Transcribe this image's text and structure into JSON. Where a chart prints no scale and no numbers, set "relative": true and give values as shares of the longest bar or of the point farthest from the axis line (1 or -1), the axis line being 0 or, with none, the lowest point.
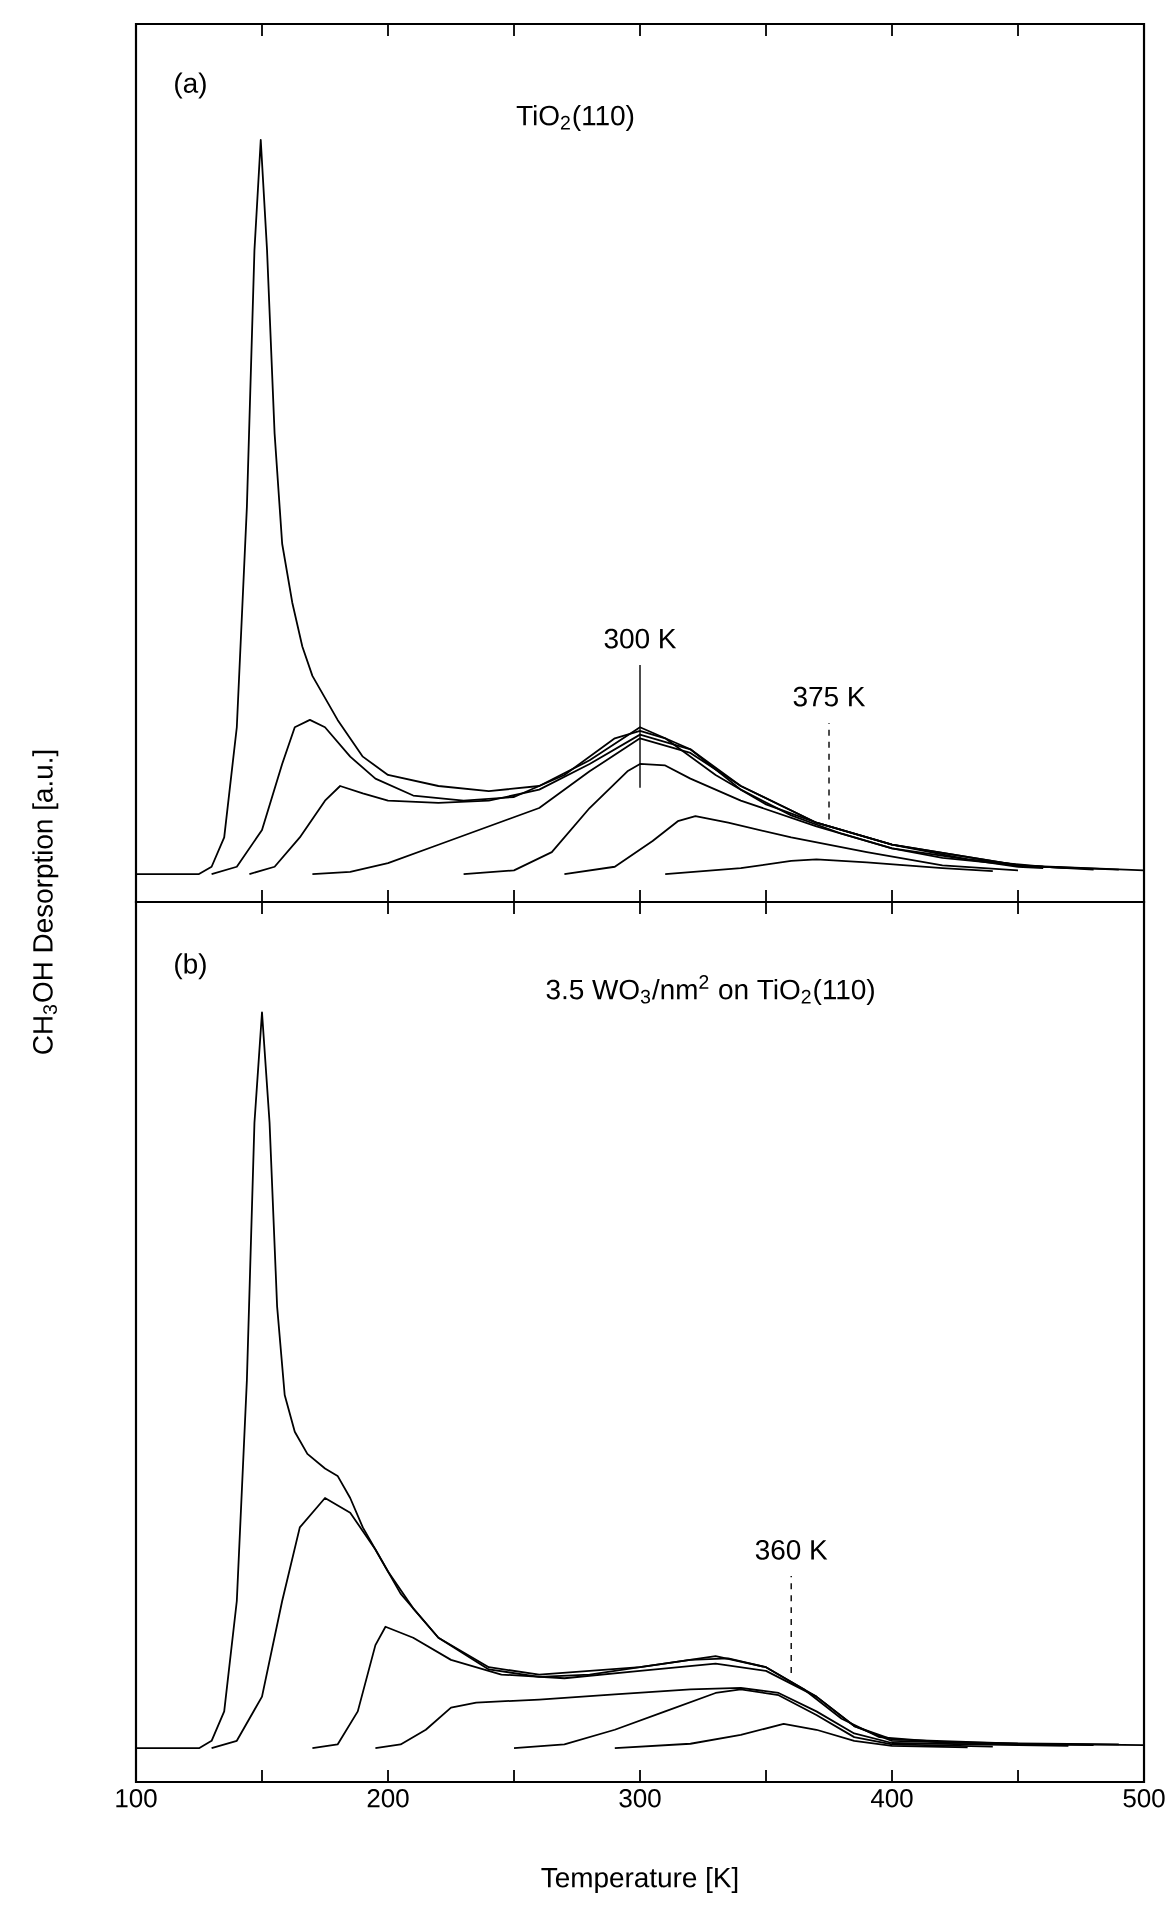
{
  "chart_data": [
    {
      "type": "line",
      "relative": true,
      "ylabel": "CH$_{3}$OH Desorption [a.u.]",
      "tick_labels": false,
      "xlim": [
        100,
        500
      ],
      "xticks": [
        100,
        {
          "value": 150,
          "label": null
        },
        200,
        {
          "value": 250,
          "label": null
        },
        300,
        {
          "value": 350,
          "label": null
        },
        400,
        {
          "value": 450,
          "label": null
        },
        500
      ],
      "annotations": [
        "(a)",
        "TiO$_{2}$(110)",
        "300 K",
        "375 K"
      ],
      "series": [
        {
          "color": "#000000",
          "x": [
            100,
            125,
            130,
            135,
            140,
            144,
            147,
            149.5,
            152,
            155,
            158,
            162,
            166,
            170,
            180,
            190,
            200,
            220,
            240,
            260,
            280,
            300,
            320,
            340,
            360,
            380,
            400,
            420,
            450,
            500
          ],
          "values": [
            0,
            0,
            0.01,
            0.05,
            0.2,
            0.5,
            0.85,
            1.0,
            0.85,
            0.6,
            0.45,
            0.37,
            0.31,
            0.27,
            0.21,
            0.16,
            0.135,
            0.12,
            0.113,
            0.12,
            0.155,
            0.2,
            0.17,
            0.115,
            0.08,
            0.055,
            0.035,
            0.022,
            0.012,
            0.005
          ]
        },
        {
          "color": "#000000",
          "x": [
            130,
            140,
            150,
            158,
            163,
            169,
            175,
            185,
            195,
            210,
            230,
            250,
            270,
            290,
            300,
            310,
            330,
            350,
            370,
            400,
            430,
            460,
            490
          ],
          "values": [
            0,
            0.01,
            0.06,
            0.15,
            0.2,
            0.21,
            0.2,
            0.16,
            0.13,
            0.107,
            0.1,
            0.105,
            0.135,
            0.185,
            0.195,
            0.185,
            0.135,
            0.095,
            0.07,
            0.04,
            0.02,
            0.01,
            0.006
          ]
        },
        {
          "color": "#000000",
          "x": [
            145,
            155,
            165,
            175,
            181,
            190,
            200,
            220,
            240,
            260,
            280,
            300,
            320,
            340,
            370,
            400,
            450,
            480
          ],
          "values": [
            0,
            0.01,
            0.05,
            0.1,
            0.12,
            0.11,
            0.1,
            0.097,
            0.1,
            0.115,
            0.15,
            0.19,
            0.17,
            0.12,
            0.07,
            0.04,
            0.012,
            0.006
          ]
        },
        {
          "color": "#000000",
          "x": [
            170,
            185,
            200,
            220,
            240,
            260,
            280,
            300,
            320,
            340,
            370,
            400,
            450,
            470
          ],
          "values": [
            0,
            0.003,
            0.015,
            0.04,
            0.065,
            0.09,
            0.14,
            0.185,
            0.165,
            0.12,
            0.07,
            0.04,
            0.012,
            0.008
          ]
        },
        {
          "color": "#000000",
          "x": [
            230,
            250,
            265,
            280,
            295,
            300,
            310,
            320,
            340,
            370,
            400,
            450,
            460
          ],
          "values": [
            0,
            0.005,
            0.03,
            0.09,
            0.14,
            0.15,
            0.148,
            0.13,
            0.1,
            0.065,
            0.035,
            0.01,
            0.008
          ]
        },
        {
          "color": "#000000",
          "x": [
            270,
            290,
            305,
            315,
            322,
            335,
            360,
            390,
            420,
            450
          ],
          "values": [
            0,
            0.01,
            0.045,
            0.072,
            0.079,
            0.07,
            0.05,
            0.03,
            0.012,
            0.005
          ]
        },
        {
          "color": "#000000",
          "x": [
            310,
            340,
            360,
            370,
            390,
            420,
            440
          ],
          "values": [
            0,
            0.008,
            0.018,
            0.02,
            0.016,
            0.008,
            0.004
          ]
        }
      ]
    },
    {
      "type": "line",
      "relative": true,
      "xlabel": "Temperature [K]",
      "tick_labels": "x",
      "xlim": [
        100,
        500
      ],
      "xticks": [
        100,
        {
          "value": 150,
          "label": null
        },
        200,
        {
          "value": 250,
          "label": null
        },
        300,
        {
          "value": 350,
          "label": null
        },
        400,
        {
          "value": 450,
          "label": null
        },
        500
      ],
      "annotations": [
        "(b)",
        "3.5 WO$_{3}$/nm$^{2}$ on TiO$_{2}$(110)",
        "360 K"
      ],
      "series": [
        {
          "color": "#000000",
          "x": [
            100,
            125,
            130,
            135,
            140,
            144,
            147,
            150,
            153,
            156,
            159,
            163,
            168,
            175,
            180,
            185,
            190,
            200,
            210,
            220,
            240,
            260,
            300,
            330,
            350,
            370,
            385,
            400,
            450,
            500
          ],
          "values": [
            0,
            0,
            0.01,
            0.05,
            0.2,
            0.5,
            0.85,
            1.0,
            0.85,
            0.6,
            0.48,
            0.43,
            0.4,
            0.38,
            0.37,
            0.34,
            0.3,
            0.24,
            0.19,
            0.15,
            0.11,
            0.1,
            0.11,
            0.125,
            0.11,
            0.07,
            0.03,
            0.012,
            0.006,
            0.004
          ]
        },
        {
          "color": "#000000",
          "x": [
            130,
            140,
            150,
            158,
            165,
            175,
            185,
            195,
            205,
            220,
            240,
            260,
            280,
            300,
            320,
            335,
            350,
            365,
            380,
            395,
            420,
            460,
            490
          ],
          "values": [
            0,
            0.01,
            0.07,
            0.2,
            0.3,
            0.34,
            0.32,
            0.27,
            0.21,
            0.15,
            0.107,
            0.097,
            0.1,
            0.11,
            0.12,
            0.122,
            0.11,
            0.08,
            0.04,
            0.015,
            0.008,
            0.006,
            0.005
          ]
        },
        {
          "color": "#000000",
          "x": [
            170,
            180,
            188,
            195,
            199,
            210,
            225,
            245,
            270,
            300,
            330,
            350,
            370,
            385,
            400,
            450,
            480
          ],
          "values": [
            0,
            0.005,
            0.05,
            0.14,
            0.165,
            0.15,
            0.12,
            0.1,
            0.095,
            0.105,
            0.115,
            0.105,
            0.07,
            0.03,
            0.01,
            0.005,
            0.004
          ]
        },
        {
          "color": "#000000",
          "x": [
            195,
            205,
            215,
            225,
            235,
            260,
            290,
            320,
            340,
            355,
            370,
            385,
            400,
            450,
            470
          ],
          "values": [
            0,
            0.005,
            0.025,
            0.055,
            0.062,
            0.066,
            0.073,
            0.08,
            0.082,
            0.075,
            0.05,
            0.02,
            0.007,
            0.004,
            0.003
          ]
        },
        {
          "color": "#000000",
          "x": [
            250,
            270,
            290,
            310,
            330,
            340,
            355,
            370,
            385,
            400,
            440
          ],
          "values": [
            0,
            0.005,
            0.025,
            0.05,
            0.075,
            0.08,
            0.072,
            0.045,
            0.015,
            0.005,
            0.002
          ]
        },
        {
          "color": "#000000",
          "x": [
            290,
            320,
            340,
            357,
            370,
            385,
            400,
            430
          ],
          "values": [
            0,
            0.006,
            0.018,
            0.033,
            0.025,
            0.01,
            0.003,
            0.001
          ]
        }
      ]
    }
  ]
}
